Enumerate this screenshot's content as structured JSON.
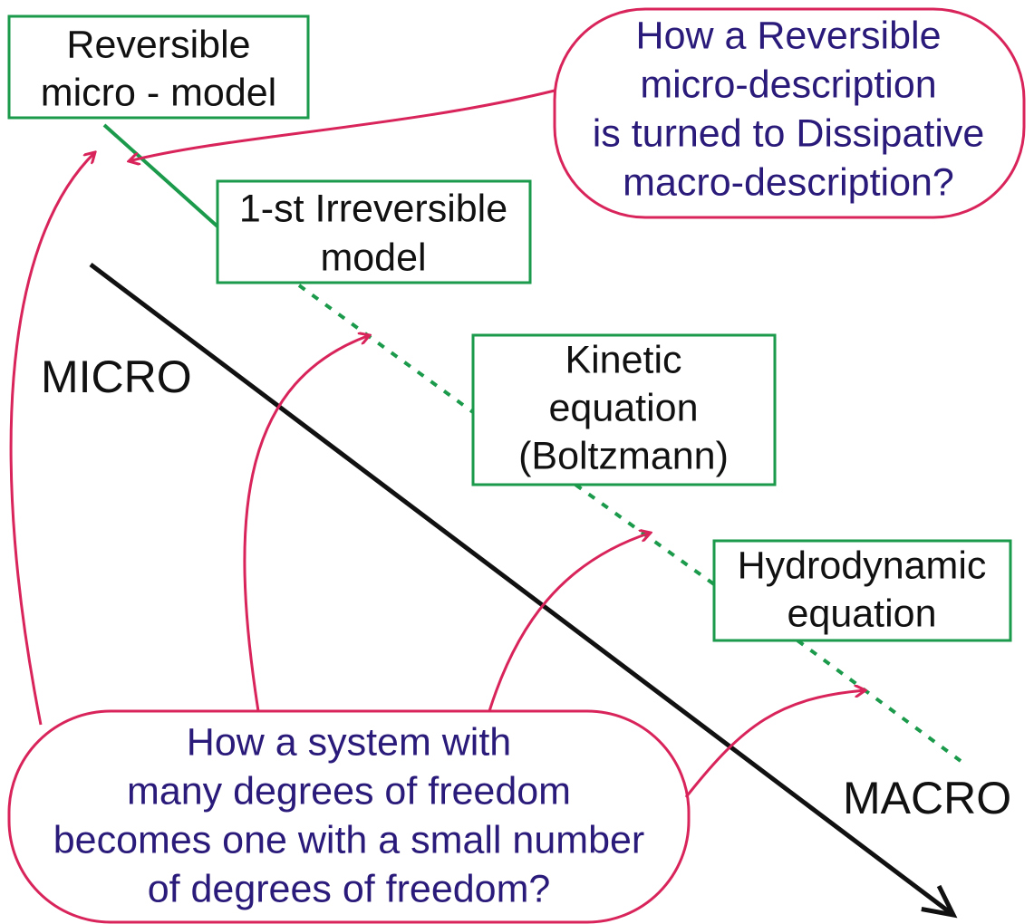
{
  "boxes": [
    {
      "lines": [
        "Reversible",
        "micro - model"
      ]
    },
    {
      "lines": [
        "1-st Irreversible",
        "model"
      ]
    },
    {
      "lines": [
        "Kinetic",
        "equation",
        "(Boltzmann)"
      ]
    },
    {
      "lines": [
        "Hydrodynamic",
        "equation"
      ]
    }
  ],
  "questions": [
    {
      "lines": [
        "How a Reversible",
        "micro-description",
        "is turned to Dissipative",
        "macro-description?"
      ]
    },
    {
      "lines": [
        "How a system with",
        "many degrees of freedom",
        "becomes one with a small number",
        "of degrees of freedom?"
      ]
    }
  ],
  "axis": {
    "start": "MICRO",
    "end": "MACRO"
  }
}
